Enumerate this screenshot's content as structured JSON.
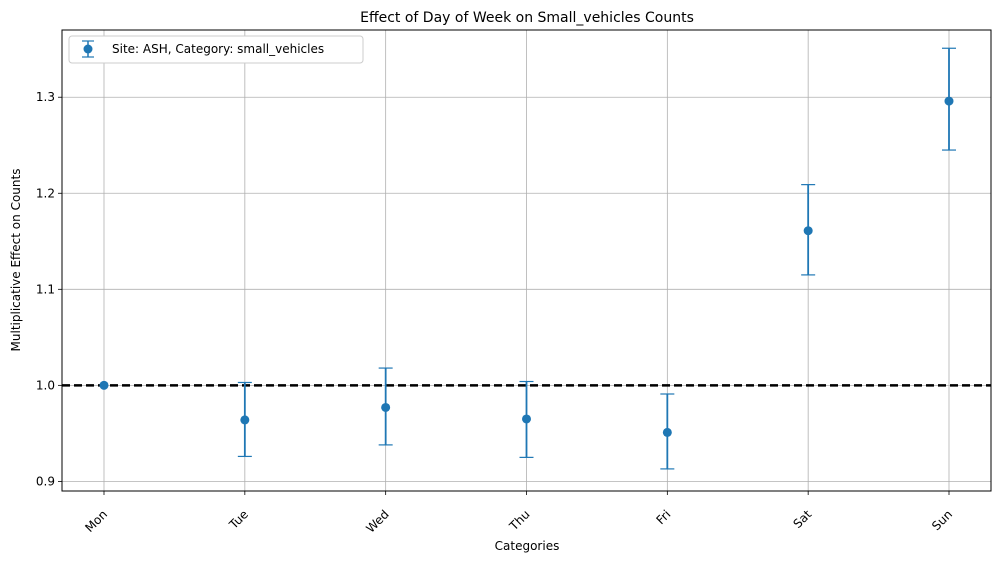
{
  "chart_data": {
    "type": "scatter",
    "title": "Effect of Day of Week on Small_vehicles Counts",
    "xlabel": "Categories",
    "ylabel": "Multiplicative Effect on Counts",
    "categories": [
      "Mon",
      "Tue",
      "Wed",
      "Thu",
      "Fri",
      "Sat",
      "Sun"
    ],
    "series": [
      {
        "name": "Site: ASH, Category: small_vehicles",
        "color": "#1f77b4",
        "values": [
          1.0,
          0.964,
          0.977,
          0.965,
          0.951,
          1.161,
          1.296
        ],
        "lower": [
          1.0,
          0.926,
          0.938,
          0.925,
          0.913,
          1.115,
          1.245
        ],
        "upper": [
          1.0,
          1.003,
          1.018,
          1.004,
          0.991,
          1.209,
          1.351
        ]
      }
    ],
    "reference_line": {
      "y": 1.0,
      "style": "dashed",
      "color": "#000000"
    },
    "ylim": [
      0.89,
      1.37
    ],
    "yticks": [
      0.9,
      1.0,
      1.1,
      1.2,
      1.3
    ],
    "ytick_labels": [
      "0.9",
      "1.0",
      "1.1",
      "1.2",
      "1.3"
    ],
    "grid": true,
    "legend_position": "top-left"
  }
}
